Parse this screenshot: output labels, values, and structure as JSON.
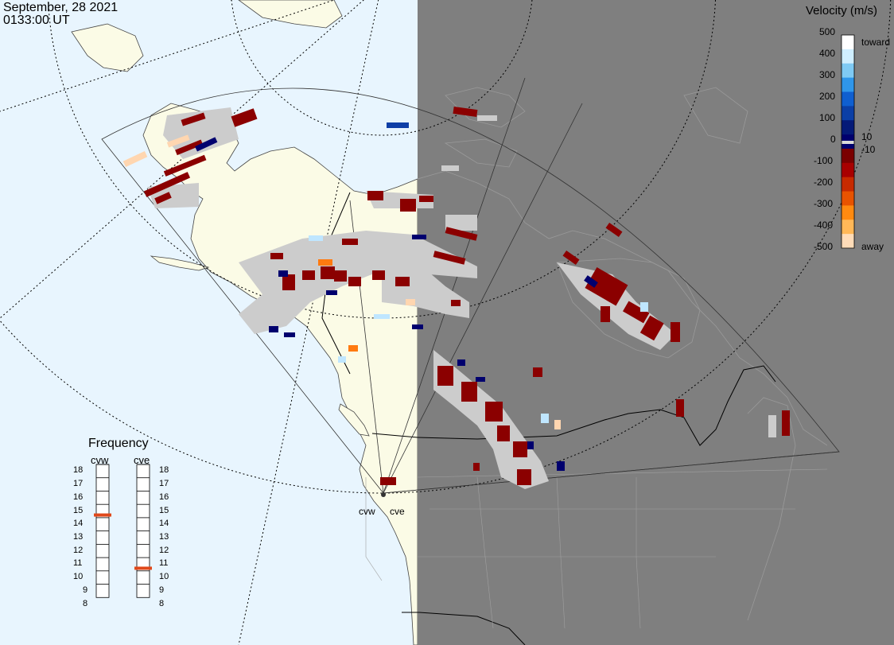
{
  "header": {
    "date": "September, 28 2021",
    "time": "0133:00 UT"
  },
  "colorbar": {
    "title": "Velocity (m/s)",
    "ticks": [
      "500",
      "400",
      "300",
      "200",
      "100",
      "0",
      "-100",
      "-200",
      "-300",
      "-400",
      "-500"
    ],
    "toward_label": "toward",
    "away_label": "away",
    "pos_threshold": "10",
    "neg_threshold": "-10",
    "colors": [
      "#ffffff",
      "#cfeeff",
      "#7fcaf4",
      "#2f96ea",
      "#0f5fd0",
      "#0b3fa6",
      "#041a78",
      "#00006e",
      "#7a0000",
      "#a80000",
      "#c72a00",
      "#e85300",
      "#ff8a10",
      "#ffb858",
      "#ffdcb8"
    ]
  },
  "frequency": {
    "title": "Frequency",
    "radars": [
      "cvw",
      "cve"
    ],
    "ticks": [
      "18",
      "17",
      "16",
      "15",
      "14",
      "13",
      "12",
      "11",
      "10",
      "9",
      "8"
    ],
    "cvw_mhz": 14.7,
    "cve_mhz": 10.7,
    "marker_color": "#e0481a"
  },
  "sites": {
    "cvw": "cvw",
    "cve": "cve"
  },
  "map": {
    "ocean_color": "#e8f5fe",
    "land_color": "#fbfbe6",
    "night_color": "#7f7f7f",
    "scatter_color": "#cccccc"
  }
}
